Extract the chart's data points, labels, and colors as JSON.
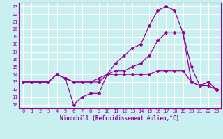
{
  "xlabel": "Windchill (Refroidissement éolien,°C)",
  "background_color": "#c8f0f0",
  "grid_color": "#ffffff",
  "line_color": "#990099",
  "xlim": [
    -0.5,
    23.5
  ],
  "ylim": [
    9.5,
    23.5
  ],
  "xticks": [
    0,
    1,
    2,
    3,
    4,
    5,
    6,
    7,
    8,
    9,
    10,
    11,
    12,
    13,
    14,
    15,
    16,
    17,
    18,
    19,
    20,
    21,
    22,
    23
  ],
  "yticks": [
    10,
    11,
    12,
    13,
    14,
    15,
    16,
    17,
    18,
    19,
    20,
    21,
    22,
    23
  ],
  "lines": [
    [
      13.0,
      13.0,
      13.0,
      13.0,
      14.0,
      13.5,
      10.0,
      11.0,
      11.5,
      11.5,
      14.0,
      15.5,
      16.5,
      17.5,
      18.0,
      20.5,
      22.5,
      23.0,
      22.5,
      19.5,
      13.0,
      12.5,
      13.0,
      12.0
    ],
    [
      13.0,
      13.0,
      13.0,
      13.0,
      14.0,
      13.5,
      13.0,
      13.0,
      13.0,
      13.5,
      14.0,
      14.5,
      14.5,
      15.0,
      15.5,
      16.5,
      18.5,
      19.5,
      19.5,
      19.5,
      15.0,
      12.5,
      13.0,
      12.0
    ],
    [
      13.0,
      13.0,
      13.0,
      13.0,
      14.0,
      13.5,
      13.0,
      13.0,
      13.0,
      13.0,
      14.0,
      14.0,
      14.0,
      14.0,
      14.0,
      14.0,
      14.5,
      14.5,
      14.5,
      14.5,
      13.0,
      12.5,
      12.5,
      12.0
    ]
  ]
}
